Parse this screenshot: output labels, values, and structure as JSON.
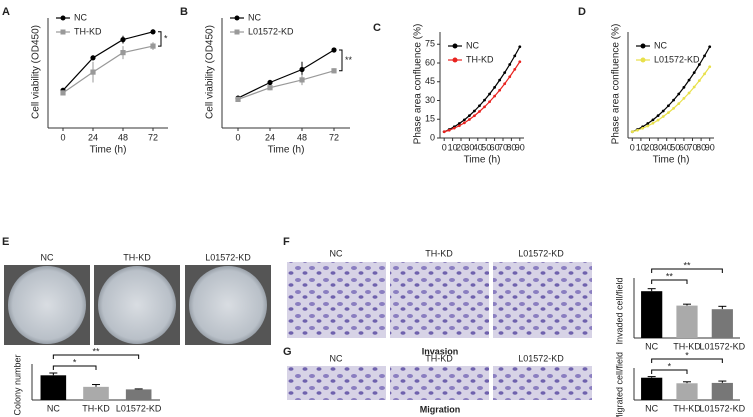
{
  "panels": [
    "A",
    "B",
    "C",
    "D",
    "E",
    "F",
    "G"
  ],
  "images": {
    "e_labels": [
      "NC",
      "TH-KD",
      "L01572-KD"
    ],
    "f_labels": [
      "NC",
      "TH-KD",
      "L01572-KD"
    ],
    "g_labels": [
      "NC",
      "TH-KD",
      "L01572-KD"
    ],
    "f_caption": "Invasion",
    "g_caption": "Migration"
  },
  "chart_data": [
    {
      "type": "line",
      "ylabel": "Cell viability (OD450)",
      "xlabel": "Time (h)",
      "x": [
        0,
        24,
        48,
        72
      ],
      "xlim": [
        -12,
        84
      ],
      "xticks": [
        0,
        24,
        48,
        72
      ],
      "ylim": [
        0,
        0.8
      ],
      "series": [
        {
          "name": "NC",
          "color": "#000000",
          "marker": "circle",
          "values": [
            0.29,
            0.54,
            0.68,
            0.74
          ],
          "errors": [
            0.02,
            0.02,
            0.03,
            0.02
          ]
        },
        {
          "name": "TH-KD",
          "color": "#999999",
          "marker": "square",
          "values": [
            0.27,
            0.43,
            0.58,
            0.63
          ],
          "errors": [
            0.02,
            0.08,
            0.05,
            0.03
          ]
        }
      ],
      "annotations": [
        "*"
      ]
    },
    {
      "type": "line",
      "ylabel": "Cell viability (OD450)",
      "xlabel": "Time (h)",
      "x": [
        0,
        24,
        48,
        72
      ],
      "xlim": [
        -12,
        84
      ],
      "xticks": [
        0,
        24,
        48,
        72
      ],
      "ylim": [
        0,
        0.8
      ],
      "series": [
        {
          "name": "NC",
          "color": "#000000",
          "marker": "circle",
          "values": [
            0.23,
            0.35,
            0.45,
            0.6
          ],
          "errors": [
            0.02,
            0.02,
            0.06,
            0.01
          ]
        },
        {
          "name": "L01572-KD",
          "color": "#999999",
          "marker": "square",
          "values": [
            0.22,
            0.31,
            0.37,
            0.44
          ],
          "errors": [
            0.02,
            0.02,
            0.04,
            0.02
          ]
        }
      ],
      "annotations": [
        "**"
      ]
    },
    {
      "type": "line",
      "ylabel": "Phase area confluence (%)",
      "xlabel": "Time (h)",
      "x": [
        0,
        6,
        12,
        18,
        24,
        30,
        36,
        42,
        48,
        54,
        60,
        66,
        72,
        78,
        84,
        90
      ],
      "xlim": [
        -5,
        95
      ],
      "xticks": [
        0,
        10,
        20,
        30,
        40,
        50,
        60,
        70,
        80,
        90
      ],
      "ylim": [
        0,
        80
      ],
      "yticks": [
        0,
        15,
        30,
        45,
        60,
        75
      ],
      "series": [
        {
          "name": "NC",
          "color": "#000000",
          "marker": "circle",
          "values": [
            5,
            6.8,
            9.0,
            11.6,
            14.5,
            17.9,
            21.6,
            25.8,
            30.3,
            35.2,
            40.5,
            46.3,
            52.3,
            58.8,
            65.7,
            73.0
          ]
        },
        {
          "name": "TH-KD",
          "color": "#e8231f",
          "marker": "circle",
          "values": [
            5,
            6.2,
            7.9,
            9.8,
            12.1,
            14.8,
            17.8,
            21.2,
            24.9,
            29.0,
            33.5,
            38.2,
            43.4,
            49.0,
            54.9,
            61.0
          ]
        }
      ]
    },
    {
      "type": "line",
      "ylabel": "Phase area confluence (%)",
      "xlabel": "Time (h)",
      "x": [
        0,
        6,
        12,
        18,
        24,
        30,
        36,
        42,
        48,
        54,
        60,
        66,
        72,
        78,
        84,
        90
      ],
      "xlim": [
        -5,
        95
      ],
      "xticks": [
        0,
        10,
        20,
        30,
        40,
        50,
        60,
        70,
        80,
        90
      ],
      "ylim": [
        0,
        80
      ],
      "series": [
        {
          "name": "NC",
          "color": "#000000",
          "marker": "circle",
          "values": [
            5,
            6.8,
            9.0,
            11.6,
            14.5,
            17.9,
            21.6,
            25.8,
            30.3,
            35.2,
            40.5,
            46.3,
            52.3,
            58.8,
            65.7,
            73.0
          ]
        },
        {
          "name": "L01572-KD",
          "color": "#e8e04a",
          "marker": "circle",
          "values": [
            5,
            6.2,
            7.8,
            9.6,
            11.8,
            14.3,
            17.2,
            20.3,
            23.7,
            27.5,
            31.7,
            36.0,
            40.8,
            45.9,
            51.3,
            57.0
          ]
        }
      ]
    },
    {
      "type": "bar",
      "ylabel": "Colony number",
      "categories": [
        "NC",
        "TH-KD",
        "L01572-KD"
      ],
      "values": [
        107,
        57,
        46
      ],
      "errors": [
        10,
        10,
        2
      ],
      "colors": [
        "#000000",
        "#aaaaaa",
        "#777777"
      ],
      "ylim": [
        0,
        130
      ],
      "annotations": [
        {
          "label": "*",
          "between": [
            "NC",
            "TH-KD"
          ]
        },
        {
          "label": "**",
          "between": [
            "NC",
            "L01572-KD"
          ]
        }
      ]
    },
    {
      "type": "bar",
      "ylabel": "Invaded cell/field",
      "categories": [
        "NC",
        "TH-KD",
        "L01572-KD"
      ],
      "values": [
        130,
        90,
        80
      ],
      "errors": [
        7,
        4,
        8
      ],
      "colors": [
        "#000000",
        "#aaaaaa",
        "#777777"
      ],
      "ylim": [
        0,
        150
      ],
      "annotations": [
        {
          "label": "**",
          "between": [
            "NC",
            "TH-KD"
          ]
        },
        {
          "label": "**",
          "between": [
            "NC",
            "L01572-KD"
          ]
        }
      ]
    },
    {
      "type": "bar",
      "ylabel": "Migrated cell/field",
      "categories": [
        "NC",
        "TH-KD",
        "L01572-KD"
      ],
      "values": [
        120,
        90,
        92
      ],
      "errors": [
        6,
        8,
        10
      ],
      "colors": [
        "#000000",
        "#aaaaaa",
        "#777777"
      ],
      "ylim": [
        0,
        140
      ],
      "annotations": [
        {
          "label": "*",
          "between": [
            "NC",
            "TH-KD"
          ]
        },
        {
          "label": "*",
          "between": [
            "NC",
            "L01572-KD"
          ]
        }
      ]
    }
  ]
}
